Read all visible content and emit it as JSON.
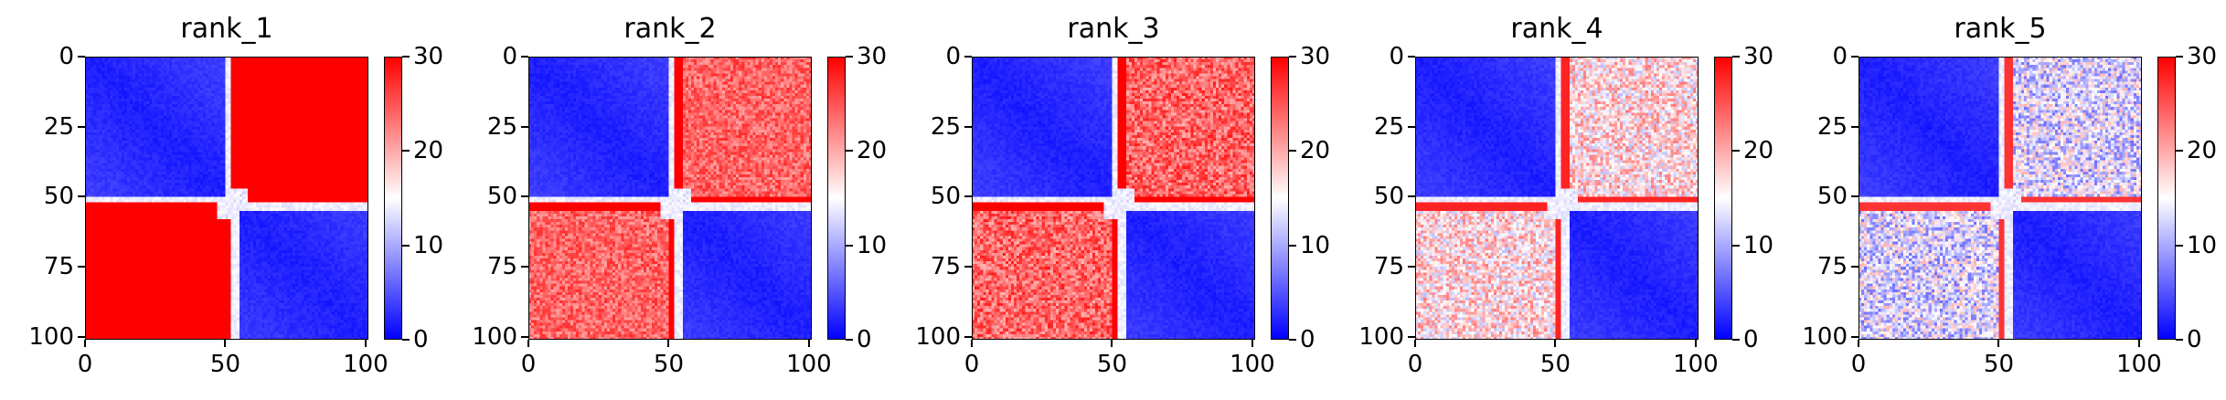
{
  "chart_data": [
    {
      "type": "heatmap",
      "title": "rank_1",
      "x_ticks": [
        "0",
        "50",
        "100"
      ],
      "y_ticks": [
        "0",
        "25",
        "50",
        "75",
        "100"
      ],
      "xlim": [
        0,
        101
      ],
      "ylim": [
        101,
        0
      ],
      "colorbar": {
        "ticks": [
          "0",
          "10",
          "20",
          "30"
        ],
        "range": [
          0,
          30
        ],
        "colormap": "bwr"
      },
      "block_boundary": 52,
      "off_block_value": 30,
      "red_band_value": 30,
      "block_noise": 0.0
    },
    {
      "type": "heatmap",
      "title": "rank_2",
      "x_ticks": [
        "0",
        "50",
        "100"
      ],
      "y_ticks": [
        "0",
        "25",
        "50",
        "75",
        "100"
      ],
      "xlim": [
        0,
        101
      ],
      "ylim": [
        101,
        0
      ],
      "colorbar": {
        "ticks": [
          "0",
          "10",
          "20",
          "30"
        ],
        "range": [
          0,
          30
        ],
        "colormap": "bwr"
      },
      "block_boundary": 52,
      "off_block_value": 24,
      "red_band_value": 30,
      "block_noise": 0.12
    },
    {
      "type": "heatmap",
      "title": "rank_3",
      "x_ticks": [
        "0",
        "50",
        "100"
      ],
      "y_ticks": [
        "0",
        "25",
        "50",
        "75",
        "100"
      ],
      "xlim": [
        0,
        101
      ],
      "ylim": [
        101,
        0
      ],
      "colorbar": {
        "ticks": [
          "0",
          "10",
          "20",
          "30"
        ],
        "range": [
          0,
          30
        ],
        "colormap": "bwr"
      },
      "block_boundary": 52,
      "off_block_value": 24,
      "red_band_value": 30,
      "block_noise": 0.15
    },
    {
      "type": "heatmap",
      "title": "rank_4",
      "x_ticks": [
        "0",
        "50",
        "100"
      ],
      "y_ticks": [
        "0",
        "25",
        "50",
        "75",
        "100"
      ],
      "xlim": [
        0,
        101
      ],
      "ylim": [
        101,
        0
      ],
      "colorbar": {
        "ticks": [
          "0",
          "10",
          "20",
          "30"
        ],
        "range": [
          0,
          30
        ],
        "colormap": "bwr"
      },
      "block_boundary": 52,
      "off_block_value": 17,
      "red_band_value": 28,
      "block_noise": 0.2
    },
    {
      "type": "heatmap",
      "title": "rank_5",
      "x_ticks": [
        "0",
        "50",
        "100"
      ],
      "y_ticks": [
        "0",
        "25",
        "50",
        "75",
        "100"
      ],
      "xlim": [
        0,
        101
      ],
      "ylim": [
        101,
        0
      ],
      "colorbar": {
        "ticks": [
          "0",
          "10",
          "20",
          "30"
        ],
        "range": [
          0,
          30
        ],
        "colormap": "bwr"
      },
      "block_boundary": 52,
      "off_block_value": 13,
      "red_band_value": 27,
      "block_noise": 0.22
    }
  ]
}
